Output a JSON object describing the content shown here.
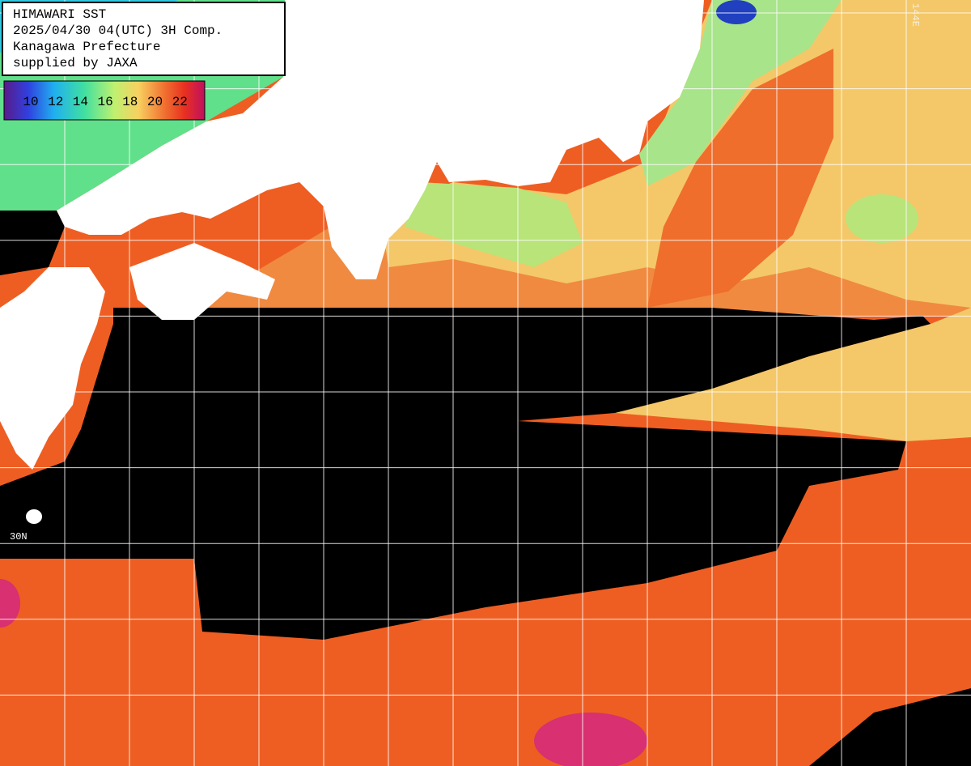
{
  "header": {
    "lines": [
      "HIMAWARI SST",
      "2025/04/30 04(UTC) 3H Comp.",
      "Kanagawa Prefecture",
      "supplied by JAXA"
    ]
  },
  "legend": {
    "labels": [
      10,
      12,
      14,
      16,
      18,
      20,
      22
    ]
  },
  "map_labels": {
    "latitude": "30N",
    "longitude": "144E"
  }
}
